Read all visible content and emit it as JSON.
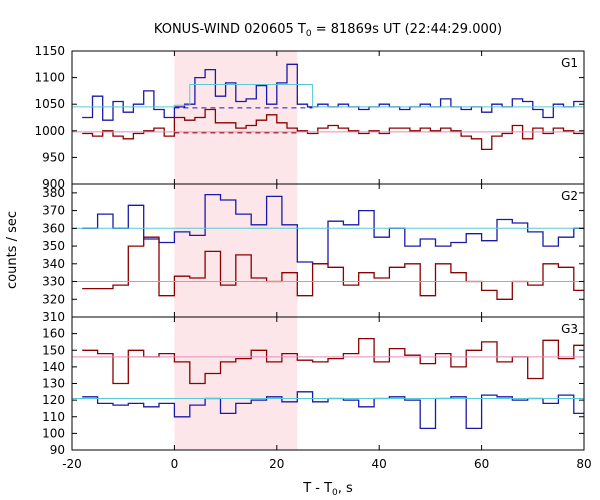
{
  "chart_data": {
    "type": "line",
    "title_main": "KONUS-WIND 020605 T",
    "title_sub": "0",
    "title_rest": " = 81869s UT (22:44:29.000)",
    "xlabel_main": "T - T",
    "xlabel_sub": "0",
    "xlabel_rest": ", s",
    "ylabel": "counts / sec",
    "xlim": [
      -20,
      80
    ],
    "x_ticks": [
      -20,
      0,
      20,
      40,
      60,
      80
    ],
    "x_tick_labels": [
      "-20",
      "0",
      "20",
      "40",
      "60",
      "80"
    ],
    "highlight_interval": [
      0,
      24
    ],
    "colors": {
      "red": "#8b0000",
      "blue": "#1a1aaa",
      "cyan": "#5bc8d8",
      "pink": "#e88ab8",
      "shade": "#fde6ea"
    },
    "panels": [
      {
        "label": "G1",
        "ylim": [
          900,
          1150
        ],
        "y_ticks": [
          900,
          950,
          1000,
          1050,
          1100,
          1150
        ],
        "y_tick_labels": [
          "900",
          "950",
          "1000",
          "1050",
          "1100",
          "1150"
        ],
        "series": [
          {
            "color": "blue",
            "step": true,
            "edges": [
              -18,
              -16,
              -14,
              -12,
              -10,
              -8,
              -6,
              -4,
              -2,
              0,
              2,
              4,
              6,
              8,
              10,
              12,
              14,
              16,
              18,
              20,
              22,
              24,
              26,
              28,
              30,
              32,
              34,
              36,
              38,
              40,
              42,
              44,
              46,
              48,
              50,
              52,
              54,
              56,
              58,
              60,
              62,
              64,
              66,
              68,
              70,
              72,
              74,
              76,
              78,
              80
            ],
            "values": [
              1025,
              1065,
              1020,
              1055,
              1035,
              1050,
              1075,
              1040,
              1025,
              1045,
              1050,
              1100,
              1115,
              1065,
              1090,
              1055,
              1060,
              1085,
              1050,
              1090,
              1125,
              1050,
              1045,
              1050,
              1045,
              1050,
              1045,
              1040,
              1045,
              1050,
              1045,
              1040,
              1045,
              1050,
              1045,
              1060,
              1045,
              1040,
              1045,
              1035,
              1050,
              1045,
              1060,
              1055,
              1040,
              1025,
              1050,
              1045,
              1055
            ]
          },
          {
            "color": "red",
            "step": true,
            "edges": [
              -18,
              -16,
              -14,
              -12,
              -10,
              -8,
              -6,
              -4,
              -2,
              0,
              2,
              4,
              6,
              8,
              10,
              12,
              14,
              16,
              18,
              20,
              22,
              24,
              26,
              28,
              30,
              32,
              34,
              36,
              38,
              40,
              42,
              44,
              46,
              48,
              50,
              52,
              54,
              56,
              58,
              60,
              62,
              64,
              66,
              68,
              70,
              72,
              74,
              76,
              78,
              80
            ],
            "values": [
              995,
              990,
              1000,
              990,
              985,
              995,
              1000,
              1005,
              990,
              1025,
              1020,
              1025,
              1040,
              1015,
              1015,
              1005,
              1010,
              1020,
              1030,
              1015,
              1005,
              1000,
              995,
              1005,
              1010,
              1005,
              1000,
              995,
              1000,
              995,
              1005,
              1005,
              1000,
              1005,
              1000,
              1005,
              1000,
              990,
              985,
              965,
              990,
              995,
              1010,
              985,
              1005,
              995,
              1005,
              1000,
              995
            ]
          },
          {
            "color": "cyan",
            "step": false,
            "x": [
              -20,
              0,
              0,
              3,
              3,
              27,
              27,
              80
            ],
            "y": [
              1045,
              1045,
              1048,
              1048,
              1087,
              1087,
              1045,
              1045
            ]
          },
          {
            "color": "pink",
            "step": false,
            "x": [
              -20,
              0,
              0,
              27,
              27,
              80
            ],
            "y": [
              998,
              998,
              998,
              998,
              998,
              998
            ]
          },
          {
            "color": "blue",
            "step": false,
            "dashed": true,
            "x": [
              0,
              27
            ],
            "y": [
              1043,
              1043
            ]
          },
          {
            "color": "red",
            "step": false,
            "dashed": true,
            "x": [
              0,
              24
            ],
            "y": [
              996,
              996
            ]
          }
        ]
      },
      {
        "label": "G2",
        "ylim": [
          310,
          385
        ],
        "y_ticks": [
          310,
          320,
          330,
          340,
          350,
          360,
          370,
          380
        ],
        "y_tick_labels": [
          "310",
          "320",
          "330",
          "340",
          "350",
          "360",
          "370",
          "380"
        ],
        "series": [
          {
            "color": "blue",
            "step": true,
            "edges": [
              -18,
              -15,
              -12,
              -9,
              -6,
              -3,
              0,
              3,
              6,
              9,
              12,
              15,
              18,
              21,
              24,
              27,
              30,
              33,
              36,
              39,
              42,
              45,
              48,
              51,
              54,
              57,
              60,
              63,
              66,
              69,
              72,
              75,
              78,
              80
            ],
            "values": [
              360,
              368,
              360,
              373,
              354,
              352,
              358,
              356,
              379,
              376,
              368,
              362,
              378,
              362,
              341,
              340,
              364,
              362,
              370,
              355,
              360,
              350,
              354,
              350,
              352,
              357,
              353,
              365,
              363,
              358,
              350,
              355,
              360
            ]
          },
          {
            "color": "red",
            "step": true,
            "edges": [
              -18,
              -15,
              -12,
              -9,
              -6,
              -3,
              0,
              3,
              6,
              9,
              12,
              15,
              18,
              21,
              24,
              27,
              30,
              33,
              36,
              39,
              42,
              45,
              48,
              51,
              54,
              57,
              60,
              63,
              66,
              69,
              72,
              75,
              78,
              80
            ],
            "values": [
              326,
              326,
              328,
              350,
              355,
              322,
              333,
              332,
              347,
              328,
              345,
              332,
              330,
              335,
              322,
              340,
              338,
              328,
              335,
              332,
              338,
              340,
              322,
              340,
              335,
              330,
              325,
              320,
              330,
              328,
              340,
              338,
              325
            ]
          },
          {
            "color": "cyan",
            "step": false,
            "x": [
              -20,
              80
            ],
            "y": [
              360,
              360
            ]
          },
          {
            "color": "pink",
            "step": false,
            "x": [
              -20,
              80
            ],
            "y": [
              330,
              330
            ]
          }
        ]
      },
      {
        "label": "G3",
        "ylim": [
          90,
          170
        ],
        "y_ticks": [
          90,
          100,
          110,
          120,
          130,
          140,
          150,
          160
        ],
        "y_tick_labels": [
          "90",
          "100",
          "110",
          "120",
          "130",
          "140",
          "150",
          "160"
        ],
        "series": [
          {
            "color": "red",
            "step": true,
            "edges": [
              -18,
              -15,
              -12,
              -9,
              -6,
              -3,
              0,
              3,
              6,
              9,
              12,
              15,
              18,
              21,
              24,
              27,
              30,
              33,
              36,
              39,
              42,
              45,
              48,
              51,
              54,
              57,
              60,
              63,
              66,
              69,
              72,
              75,
              78,
              80
            ],
            "values": [
              150,
              148,
              130,
              150,
              146,
              148,
              143,
              130,
              136,
              143,
              145,
              150,
              143,
              148,
              144,
              143,
              145,
              148,
              157,
              143,
              151,
              147,
              142,
              148,
              140,
              150,
              155,
              143,
              146,
              133,
              156,
              145,
              153
            ]
          },
          {
            "color": "blue",
            "step": true,
            "edges": [
              -18,
              -15,
              -12,
              -9,
              -6,
              -3,
              0,
              3,
              6,
              9,
              12,
              15,
              18,
              21,
              24,
              27,
              30,
              33,
              36,
              39,
              42,
              45,
              48,
              51,
              54,
              57,
              60,
              63,
              66,
              69,
              72,
              75,
              78,
              80
            ],
            "values": [
              122,
              118,
              117,
              118,
              116,
              118,
              110,
              117,
              121,
              112,
              118,
              120,
              122,
              119,
              125,
              119,
              121,
              120,
              116,
              121,
              122,
              120,
              103,
              121,
              122,
              103,
              123,
              122,
              120,
              121,
              118,
              123,
              112
            ]
          },
          {
            "color": "cyan",
            "step": false,
            "x": [
              -20,
              80
            ],
            "y": [
              121,
              121
            ]
          },
          {
            "color": "pink",
            "step": false,
            "x": [
              -20,
              80
            ],
            "y": [
              146,
              146
            ]
          }
        ]
      }
    ]
  }
}
